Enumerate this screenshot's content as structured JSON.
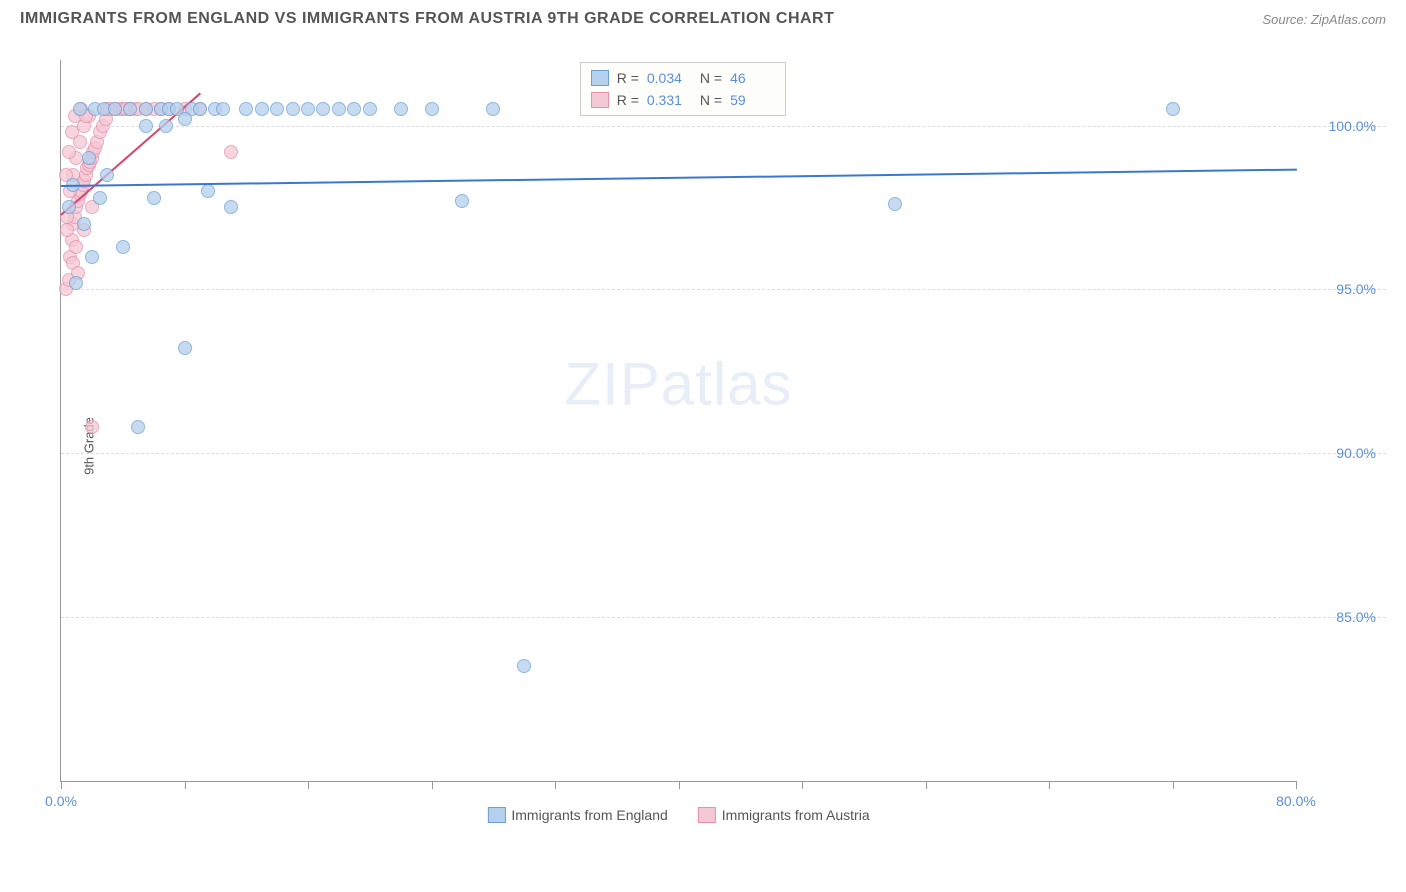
{
  "header": {
    "title": "IMMIGRANTS FROM ENGLAND VS IMMIGRANTS FROM AUSTRIA 9TH GRADE CORRELATION CHART",
    "source": "Source: ZipAtlas.com"
  },
  "chart": {
    "type": "scatter",
    "y_axis_label": "9th Grade",
    "x_range": [
      0,
      80
    ],
    "y_range": [
      80,
      102
    ],
    "y_ticks": [
      {
        "value": 100,
        "label": "100.0%"
      },
      {
        "value": 95,
        "label": "95.0%"
      },
      {
        "value": 90,
        "label": "90.0%"
      },
      {
        "value": 85,
        "label": "85.0%"
      }
    ],
    "x_ticks": [
      {
        "value": 0,
        "label": "0.0%"
      },
      {
        "value": 8,
        "label": ""
      },
      {
        "value": 16,
        "label": ""
      },
      {
        "value": 24,
        "label": ""
      },
      {
        "value": 32,
        "label": ""
      },
      {
        "value": 40,
        "label": ""
      },
      {
        "value": 48,
        "label": ""
      },
      {
        "value": 56,
        "label": ""
      },
      {
        "value": 64,
        "label": ""
      },
      {
        "value": 72,
        "label": ""
      },
      {
        "value": 80,
        "label": "80.0%"
      }
    ],
    "grid_color": "#dddddd",
    "background": "#ffffff",
    "series": [
      {
        "name": "Immigrants from England",
        "color_fill": "#b5d0ec",
        "color_stroke": "#6b9fd6",
        "marker_size": 14,
        "R": "0.034",
        "N": "46",
        "trend": {
          "x1": 0,
          "y1": 98.2,
          "x2": 80,
          "y2": 98.7,
          "color": "#3a78d0"
        },
        "points": [
          {
            "x": 0.5,
            "y": 97.5
          },
          {
            "x": 0.8,
            "y": 98.2
          },
          {
            "x": 1.0,
            "y": 95.2
          },
          {
            "x": 1.2,
            "y": 100.5
          },
          {
            "x": 1.5,
            "y": 97.0
          },
          {
            "x": 1.8,
            "y": 99.0
          },
          {
            "x": 2.0,
            "y": 96.0
          },
          {
            "x": 2.2,
            "y": 100.5
          },
          {
            "x": 2.5,
            "y": 97.8
          },
          {
            "x": 2.8,
            "y": 100.5
          },
          {
            "x": 3.0,
            "y": 98.5
          },
          {
            "x": 3.5,
            "y": 100.5
          },
          {
            "x": 4.0,
            "y": 96.3
          },
          {
            "x": 4.5,
            "y": 100.5
          },
          {
            "x": 5.0,
            "y": 90.8
          },
          {
            "x": 5.5,
            "y": 100.5
          },
          {
            "x": 6.0,
            "y": 97.8
          },
          {
            "x": 6.5,
            "y": 100.5
          },
          {
            "x": 7.0,
            "y": 100.5
          },
          {
            "x": 7.5,
            "y": 100.5
          },
          {
            "x": 8.0,
            "y": 93.2
          },
          {
            "x": 8.5,
            "y": 100.5
          },
          {
            "x": 9.0,
            "y": 100.5
          },
          {
            "x": 9.5,
            "y": 98.0
          },
          {
            "x": 10.0,
            "y": 100.5
          },
          {
            "x": 10.5,
            "y": 100.5
          },
          {
            "x": 11.0,
            "y": 97.5
          },
          {
            "x": 12.0,
            "y": 100.5
          },
          {
            "x": 13.0,
            "y": 100.5
          },
          {
            "x": 14.0,
            "y": 100.5
          },
          {
            "x": 15.0,
            "y": 100.5
          },
          {
            "x": 16.0,
            "y": 100.5
          },
          {
            "x": 17.0,
            "y": 100.5
          },
          {
            "x": 18.0,
            "y": 100.5
          },
          {
            "x": 19.0,
            "y": 100.5
          },
          {
            "x": 20.0,
            "y": 100.5
          },
          {
            "x": 22.0,
            "y": 100.5
          },
          {
            "x": 24.0,
            "y": 100.5
          },
          {
            "x": 26.0,
            "y": 97.7
          },
          {
            "x": 28.0,
            "y": 100.5
          },
          {
            "x": 30.0,
            "y": 83.5
          },
          {
            "x": 54.0,
            "y": 97.6
          },
          {
            "x": 72.0,
            "y": 100.5
          },
          {
            "x": 5.5,
            "y": 100.0
          },
          {
            "x": 6.8,
            "y": 100.0
          },
          {
            "x": 8.0,
            "y": 100.2
          }
        ]
      },
      {
        "name": "Immigrants from Austria",
        "color_fill": "#f4c8d4",
        "color_stroke": "#e591ab",
        "marker_size": 14,
        "R": "0.331",
        "N": "59",
        "trend": {
          "x1": 0,
          "y1": 97.3,
          "x2": 9,
          "y2": 101.0,
          "color": "#d6476f"
        },
        "points": [
          {
            "x": 0.3,
            "y": 95.0
          },
          {
            "x": 0.5,
            "y": 95.3
          },
          {
            "x": 0.6,
            "y": 96.0
          },
          {
            "x": 0.7,
            "y": 96.5
          },
          {
            "x": 0.8,
            "y": 97.0
          },
          {
            "x": 0.9,
            "y": 97.2
          },
          {
            "x": 1.0,
            "y": 97.5
          },
          {
            "x": 1.1,
            "y": 97.7
          },
          {
            "x": 1.2,
            "y": 97.9
          },
          {
            "x": 1.3,
            "y": 98.0
          },
          {
            "x": 1.4,
            "y": 98.2
          },
          {
            "x": 1.5,
            "y": 98.3
          },
          {
            "x": 1.6,
            "y": 98.5
          },
          {
            "x": 1.7,
            "y": 98.7
          },
          {
            "x": 1.8,
            "y": 98.8
          },
          {
            "x": 1.9,
            "y": 98.9
          },
          {
            "x": 2.0,
            "y": 99.0
          },
          {
            "x": 2.1,
            "y": 99.2
          },
          {
            "x": 2.2,
            "y": 99.3
          },
          {
            "x": 2.3,
            "y": 99.5
          },
          {
            "x": 2.5,
            "y": 99.8
          },
          {
            "x": 2.7,
            "y": 100.0
          },
          {
            "x": 2.9,
            "y": 100.2
          },
          {
            "x": 3.0,
            "y": 100.5
          },
          {
            "x": 3.2,
            "y": 100.5
          },
          {
            "x": 3.5,
            "y": 100.5
          },
          {
            "x": 3.8,
            "y": 100.5
          },
          {
            "x": 4.0,
            "y": 100.5
          },
          {
            "x": 4.2,
            "y": 100.5
          },
          {
            "x": 4.5,
            "y": 100.5
          },
          {
            "x": 4.8,
            "y": 100.5
          },
          {
            "x": 5.0,
            "y": 100.5
          },
          {
            "x": 5.5,
            "y": 100.5
          },
          {
            "x": 6.0,
            "y": 100.5
          },
          {
            "x": 6.5,
            "y": 100.5
          },
          {
            "x": 7.0,
            "y": 100.5
          },
          {
            "x": 8.0,
            "y": 100.5
          },
          {
            "x": 9.0,
            "y": 100.5
          },
          {
            "x": 1.0,
            "y": 96.3
          },
          {
            "x": 1.5,
            "y": 96.8
          },
          {
            "x": 2.0,
            "y": 97.5
          },
          {
            "x": 0.4,
            "y": 97.2
          },
          {
            "x": 0.6,
            "y": 98.0
          },
          {
            "x": 0.8,
            "y": 98.5
          },
          {
            "x": 1.0,
            "y": 99.0
          },
          {
            "x": 1.2,
            "y": 99.5
          },
          {
            "x": 1.5,
            "y": 100.0
          },
          {
            "x": 1.8,
            "y": 100.3
          },
          {
            "x": 2.0,
            "y": 90.8
          },
          {
            "x": 0.3,
            "y": 98.5
          },
          {
            "x": 0.5,
            "y": 99.2
          },
          {
            "x": 0.7,
            "y": 99.8
          },
          {
            "x": 0.9,
            "y": 100.3
          },
          {
            "x": 11.0,
            "y": 99.2
          },
          {
            "x": 0.4,
            "y": 96.8
          },
          {
            "x": 0.8,
            "y": 95.8
          },
          {
            "x": 1.1,
            "y": 95.5
          },
          {
            "x": 1.3,
            "y": 100.5
          },
          {
            "x": 1.6,
            "y": 100.3
          }
        ]
      }
    ],
    "inner_legend": {
      "rows": [
        {
          "swatch_fill": "#b5d0ec",
          "swatch_stroke": "#6b9fd6",
          "r_label": "R =",
          "r_val": "0.034",
          "n_label": "N =",
          "n_val": "46"
        },
        {
          "swatch_fill": "#f4c8d4",
          "swatch_stroke": "#e591ab",
          "r_label": "R =",
          "r_val": "0.331",
          "n_label": "N =",
          "n_val": "59"
        }
      ]
    },
    "bottom_legend": [
      {
        "swatch_fill": "#b5d0ec",
        "swatch_stroke": "#6b9fd6",
        "label": "Immigrants from England"
      },
      {
        "swatch_fill": "#f4c8d4",
        "swatch_stroke": "#e591ab",
        "label": "Immigrants from Austria"
      }
    ],
    "watermark": {
      "zip": "ZIP",
      "atlas": "atlas"
    }
  }
}
